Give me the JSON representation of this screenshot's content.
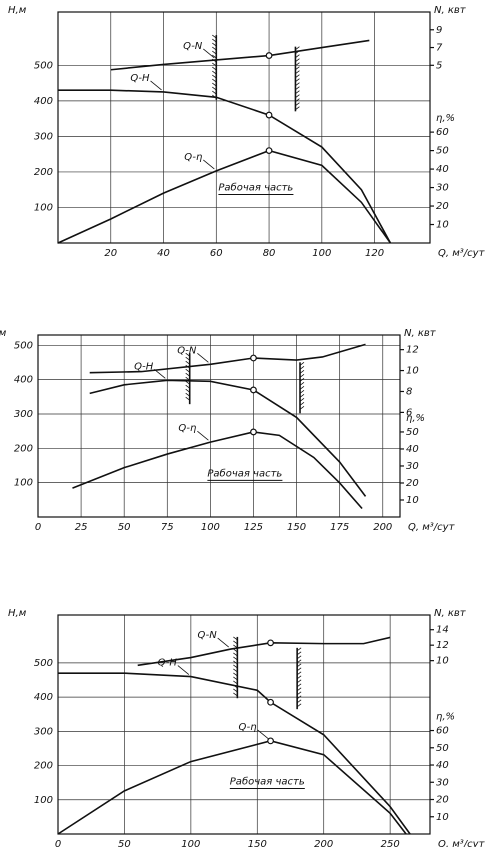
{
  "chart_data": [
    {
      "type": "line",
      "x_label": "Q, м³/сут",
      "y_label": "H,м",
      "y2_label": "η,%",
      "y3_label": "N, квт",
      "annotation": "Рабочая часть",
      "xlim": [
        0,
        141
      ],
      "xticks": [
        20,
        40,
        60,
        80,
        100,
        120
      ],
      "ylim": [
        0,
        650
      ],
      "yticks": [
        100,
        200,
        300,
        400,
        500
      ],
      "y2lim": [
        0,
        125
      ],
      "y2ticks": [
        10,
        20,
        30,
        40,
        50,
        60
      ],
      "y3lim": [
        -15,
        11
      ],
      "y3ticks": [
        5,
        7,
        9
      ],
      "grid": true,
      "optimum": 80,
      "work_zone": [
        60,
        90
      ],
      "series": [
        {
          "name": "Q-H",
          "axis": "y",
          "color": "#111",
          "x": [
            0,
            20,
            40,
            60,
            80,
            100,
            115,
            126
          ],
          "values": [
            430,
            430,
            425,
            410,
            360,
            270,
            150,
            0
          ]
        },
        {
          "name": "Q-η",
          "axis": "y2",
          "color": "#111",
          "x": [
            0,
            20,
            40,
            60,
            80,
            100,
            115,
            126
          ],
          "values": [
            0,
            13,
            27,
            39,
            50,
            42,
            22,
            0
          ]
        },
        {
          "name": "Q-N",
          "axis": "y3",
          "color": "#111",
          "x": [
            20,
            40,
            60,
            80,
            100,
            118
          ],
          "values": [
            4.5,
            5.1,
            5.6,
            6.1,
            7.0,
            7.8
          ]
        }
      ]
    },
    {
      "type": "line",
      "x_label": "Q, м³/сут",
      "y_label": "H,м",
      "y2_label": "η,%",
      "y3_label": "N, квт",
      "annotation": "Рабочая часть",
      "xlim": [
        0,
        210
      ],
      "xticks": [
        0,
        25,
        50,
        75,
        100,
        125,
        150,
        175,
        200
      ],
      "ylim": [
        0,
        530
      ],
      "yticks": [
        100,
        200,
        300,
        400,
        500
      ],
      "y2lim": [
        0,
        107
      ],
      "y2ticks": [
        10,
        20,
        30,
        40,
        50
      ],
      "y3lim": [
        -4,
        13.4
      ],
      "y3ticks": [
        6,
        8,
        10,
        12
      ],
      "grid": true,
      "optimum": 125,
      "work_zone": [
        88,
        152
      ],
      "series": [
        {
          "name": "Q-H",
          "axis": "y",
          "color": "#111",
          "x": [
            30,
            50,
            75,
            100,
            125,
            150,
            175,
            190
          ],
          "values": [
            360,
            385,
            398,
            395,
            370,
            290,
            160,
            60
          ]
        },
        {
          "name": "Q-η",
          "axis": "y2",
          "color": "#111",
          "x": [
            20,
            50,
            75,
            100,
            125,
            140,
            160,
            175,
            188
          ],
          "values": [
            17,
            29,
            37,
            44,
            50,
            48,
            35,
            20,
            5
          ]
        },
        {
          "name": "Q-N",
          "axis": "y3",
          "color": "#111",
          "x": [
            30,
            60,
            100,
            125,
            150,
            165,
            190
          ],
          "values": [
            9.8,
            9.9,
            10.6,
            11.2,
            11,
            11.3,
            12.5
          ]
        }
      ]
    },
    {
      "type": "line",
      "x_label": "Q, м³/сут",
      "y_label": "H,м",
      "y2_label": "η,%",
      "y3_label": "N, квт",
      "annotation": "Рабочая часть",
      "xlim": [
        0,
        280
      ],
      "xticks": [
        0,
        50,
        100,
        150,
        200,
        250
      ],
      "ylim": [
        0,
        640
      ],
      "yticks": [
        100,
        200,
        300,
        400,
        500
      ],
      "y2lim": [
        0,
        127
      ],
      "y2ticks": [
        10,
        20,
        30,
        40,
        50,
        60
      ],
      "y3lim": [
        -12.4,
        15.9
      ],
      "y3ticks": [
        10,
        12,
        14
      ],
      "grid": true,
      "optimum": 160,
      "work_zone": [
        135,
        180
      ],
      "series": [
        {
          "name": "Q-H",
          "axis": "y",
          "color": "#111",
          "x": [
            0,
            50,
            100,
            150,
            160,
            200,
            250,
            265
          ],
          "values": [
            470,
            470,
            460,
            420,
            385,
            290,
            80,
            0
          ]
        },
        {
          "name": "Q-η",
          "axis": "y2",
          "color": "#111",
          "x": [
            0,
            50,
            100,
            160,
            200,
            250,
            262
          ],
          "values": [
            0,
            25,
            42,
            54,
            46,
            12,
            0
          ]
        },
        {
          "name": "Q-N",
          "axis": "y3",
          "color": "#111",
          "x": [
            60,
            100,
            130,
            160,
            200,
            230,
            250
          ],
          "values": [
            9.4,
            10.4,
            11.5,
            12.3,
            12.2,
            12.2,
            13
          ]
        }
      ]
    }
  ]
}
